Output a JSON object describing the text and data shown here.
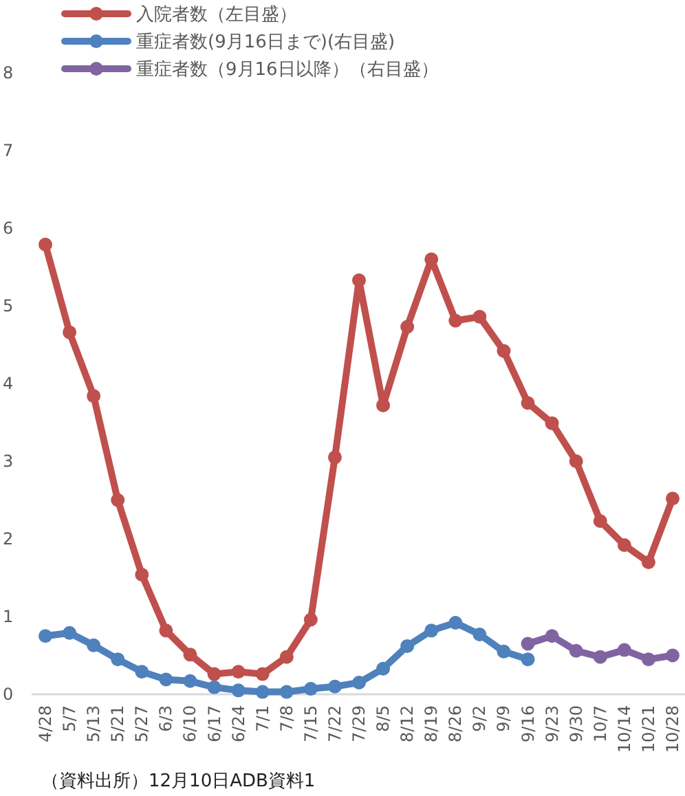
{
  "chart_data": {
    "type": "line",
    "categories": [
      "4/28",
      "5/7",
      "5/13",
      "5/21",
      "5/27",
      "6/3",
      "6/10",
      "6/17",
      "6/24",
      "7/1",
      "7/8",
      "7/15",
      "7/22",
      "7/29",
      "8/5",
      "8/12",
      "8/19",
      "8/26",
      "9/2",
      "9/9",
      "9/16",
      "9/23",
      "9/30",
      "10/7",
      "10/14",
      "10/21",
      "10/28"
    ],
    "series": [
      {
        "name": "入院者数（左目盛）",
        "color": "#c0504d",
        "values": [
          5.79,
          4.66,
          3.84,
          2.5,
          1.54,
          0.82,
          0.51,
          0.26,
          0.29,
          0.26,
          0.48,
          0.96,
          3.05,
          5.33,
          3.72,
          4.73,
          5.6,
          4.81,
          4.86,
          4.42,
          3.75,
          3.49,
          3.0,
          2.23,
          1.92,
          1.7,
          2.52
        ]
      },
      {
        "name": "重症者数(9月16日まで)(右目盛)",
        "color": "#4f81bd",
        "values": [
          0.75,
          0.79,
          0.63,
          0.45,
          0.29,
          0.19,
          0.17,
          0.09,
          0.05,
          0.03,
          0.03,
          0.07,
          0.1,
          0.15,
          0.33,
          0.62,
          0.82,
          0.92,
          0.77,
          0.55,
          0.45,
          null,
          null,
          null,
          null,
          null,
          null
        ]
      },
      {
        "name": "重症者数（9月16日以降）（右目盛）",
        "color": "#8064a2",
        "values": [
          null,
          null,
          null,
          null,
          null,
          null,
          null,
          null,
          null,
          null,
          null,
          null,
          null,
          null,
          null,
          null,
          null,
          null,
          null,
          null,
          0.65,
          0.75,
          0.56,
          0.48,
          0.57,
          0.45,
          0.5
        ]
      }
    ],
    "ylim": [
      0,
      8
    ],
    "yticks": [
      0,
      1,
      2,
      3,
      4,
      5,
      6,
      7,
      8
    ],
    "grid": false,
    "legend": "top left",
    "marker": "circle",
    "line_style": "solid",
    "annotations": [
      "（資料出所）12月10日ADB資料1"
    ]
  }
}
